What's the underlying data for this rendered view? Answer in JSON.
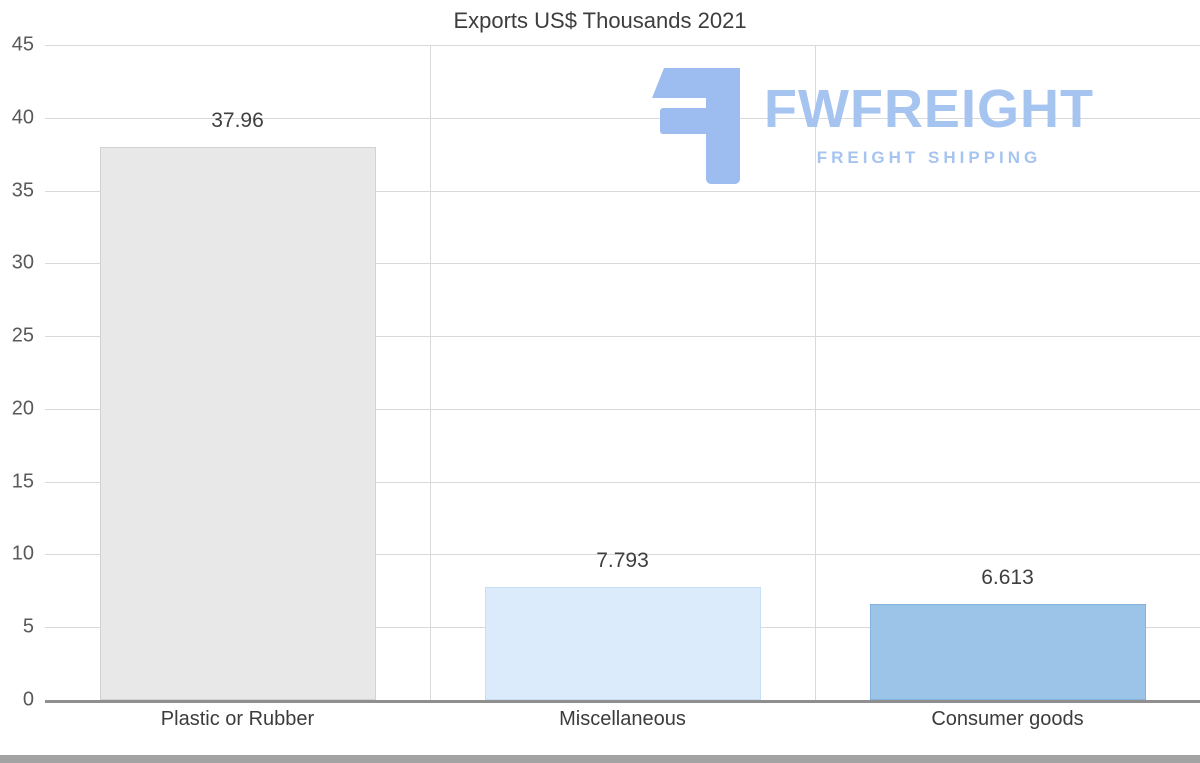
{
  "title": "Exports US$ Thousands 2021",
  "watermark": {
    "brand": "FWFREIGHT",
    "tagline": "FREIGHT SHIPPING",
    "color": "#a6c4f0"
  },
  "chart_data": {
    "type": "bar",
    "title": "Exports US$ Thousands 2021",
    "categories": [
      "Plastic or Rubber",
      "Miscellaneous",
      "Consumer goods"
    ],
    "values": [
      37.96,
      7.793,
      6.613
    ],
    "value_labels": [
      "37.96",
      "7.793",
      "6.613"
    ],
    "xlabel": "",
    "ylabel": "",
    "ylim": [
      0,
      45
    ],
    "yticks": [
      0,
      5,
      10,
      15,
      20,
      25,
      30,
      35,
      40,
      45
    ],
    "grid": true,
    "legend": false,
    "bar_fill_colors": [
      "#e8e8e8",
      "#dcebfb",
      "#9cc3e8"
    ],
    "bar_border_colors": [
      "#d2d2d2",
      "#c7def5",
      "#86b3de"
    ],
    "gridline_color": "#d9d9d9",
    "axis_color": "#8f8f8f",
    "tick_label_color": "#595959",
    "value_label_color": "#3f3f3f"
  }
}
